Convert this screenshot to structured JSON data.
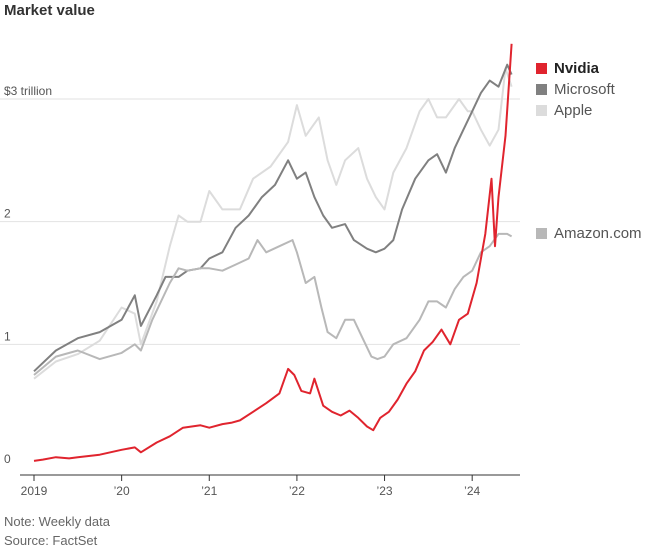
{
  "chart_data": {
    "type": "line",
    "title": "Market value",
    "xlabel": "",
    "ylabel": "",
    "xlim": [
      2019.0,
      2024.5
    ],
    "ylim": [
      0,
      3
    ],
    "y_ticks": [
      {
        "value": 0,
        "label": "0"
      },
      {
        "value": 1,
        "label": "1"
      },
      {
        "value": 2,
        "label": "2"
      },
      {
        "value": 3,
        "label": "$3 trillion"
      }
    ],
    "x_ticks": [
      {
        "value": 2019,
        "label": "2019"
      },
      {
        "value": 2020,
        "label": "’20"
      },
      {
        "value": 2021,
        "label": "’21"
      },
      {
        "value": 2022,
        "label": "’22"
      },
      {
        "value": 2023,
        "label": "’23"
      },
      {
        "value": 2024,
        "label": "’24"
      }
    ],
    "grid": true,
    "legend_position": "right",
    "series": [
      {
        "name": "Apple",
        "color": "#dcdcdc",
        "points": [
          [
            2019.0,
            0.72
          ],
          [
            2019.25,
            0.86
          ],
          [
            2019.5,
            0.92
          ],
          [
            2019.75,
            1.03
          ],
          [
            2020.0,
            1.3
          ],
          [
            2020.15,
            1.25
          ],
          [
            2020.22,
            1.0
          ],
          [
            2020.4,
            1.35
          ],
          [
            2020.55,
            1.8
          ],
          [
            2020.65,
            2.05
          ],
          [
            2020.75,
            2.0
          ],
          [
            2020.9,
            2.0
          ],
          [
            2021.0,
            2.25
          ],
          [
            2021.15,
            2.1
          ],
          [
            2021.35,
            2.1
          ],
          [
            2021.5,
            2.35
          ],
          [
            2021.7,
            2.45
          ],
          [
            2021.9,
            2.65
          ],
          [
            2022.0,
            2.95
          ],
          [
            2022.1,
            2.7
          ],
          [
            2022.25,
            2.85
          ],
          [
            2022.35,
            2.5
          ],
          [
            2022.45,
            2.3
          ],
          [
            2022.55,
            2.5
          ],
          [
            2022.7,
            2.6
          ],
          [
            2022.8,
            2.35
          ],
          [
            2022.9,
            2.2
          ],
          [
            2023.0,
            2.1
          ],
          [
            2023.1,
            2.4
          ],
          [
            2023.25,
            2.6
          ],
          [
            2023.4,
            2.9
          ],
          [
            2023.5,
            3.0
          ],
          [
            2023.6,
            2.85
          ],
          [
            2023.7,
            2.85
          ],
          [
            2023.85,
            3.0
          ],
          [
            2023.95,
            2.9
          ],
          [
            2024.0,
            2.9
          ],
          [
            2024.1,
            2.75
          ],
          [
            2024.2,
            2.62
          ],
          [
            2024.3,
            2.75
          ],
          [
            2024.38,
            3.25
          ],
          [
            2024.45,
            3.1
          ]
        ]
      },
      {
        "name": "Microsoft",
        "color": "#808080",
        "points": [
          [
            2019.0,
            0.78
          ],
          [
            2019.25,
            0.95
          ],
          [
            2019.5,
            1.05
          ],
          [
            2019.75,
            1.1
          ],
          [
            2020.0,
            1.2
          ],
          [
            2020.15,
            1.4
          ],
          [
            2020.22,
            1.15
          ],
          [
            2020.4,
            1.4
          ],
          [
            2020.5,
            1.55
          ],
          [
            2020.65,
            1.55
          ],
          [
            2020.75,
            1.6
          ],
          [
            2020.9,
            1.62
          ],
          [
            2021.0,
            1.7
          ],
          [
            2021.15,
            1.75
          ],
          [
            2021.3,
            1.95
          ],
          [
            2021.45,
            2.05
          ],
          [
            2021.6,
            2.2
          ],
          [
            2021.75,
            2.3
          ],
          [
            2021.9,
            2.5
          ],
          [
            2022.0,
            2.35
          ],
          [
            2022.1,
            2.4
          ],
          [
            2022.2,
            2.2
          ],
          [
            2022.3,
            2.05
          ],
          [
            2022.4,
            1.95
          ],
          [
            2022.55,
            1.98
          ],
          [
            2022.65,
            1.85
          ],
          [
            2022.8,
            1.78
          ],
          [
            2022.9,
            1.75
          ],
          [
            2023.0,
            1.78
          ],
          [
            2023.1,
            1.85
          ],
          [
            2023.2,
            2.1
          ],
          [
            2023.35,
            2.35
          ],
          [
            2023.5,
            2.5
          ],
          [
            2023.6,
            2.55
          ],
          [
            2023.7,
            2.4
          ],
          [
            2023.8,
            2.6
          ],
          [
            2023.9,
            2.75
          ],
          [
            2024.0,
            2.9
          ],
          [
            2024.1,
            3.05
          ],
          [
            2024.2,
            3.15
          ],
          [
            2024.3,
            3.1
          ],
          [
            2024.4,
            3.28
          ],
          [
            2024.45,
            3.2
          ]
        ]
      },
      {
        "name": "Amazon.com",
        "color": "#b8b8b8",
        "points": [
          [
            2019.0,
            0.75
          ],
          [
            2019.25,
            0.9
          ],
          [
            2019.5,
            0.95
          ],
          [
            2019.75,
            0.88
          ],
          [
            2020.0,
            0.93
          ],
          [
            2020.15,
            1.0
          ],
          [
            2020.22,
            0.95
          ],
          [
            2020.35,
            1.2
          ],
          [
            2020.55,
            1.5
          ],
          [
            2020.65,
            1.62
          ],
          [
            2020.75,
            1.6
          ],
          [
            2020.9,
            1.62
          ],
          [
            2021.0,
            1.62
          ],
          [
            2021.15,
            1.6
          ],
          [
            2021.3,
            1.65
          ],
          [
            2021.45,
            1.7
          ],
          [
            2021.55,
            1.85
          ],
          [
            2021.65,
            1.75
          ],
          [
            2021.8,
            1.8
          ],
          [
            2021.95,
            1.85
          ],
          [
            2022.0,
            1.75
          ],
          [
            2022.1,
            1.5
          ],
          [
            2022.2,
            1.55
          ],
          [
            2022.28,
            1.3
          ],
          [
            2022.35,
            1.1
          ],
          [
            2022.45,
            1.05
          ],
          [
            2022.55,
            1.2
          ],
          [
            2022.65,
            1.2
          ],
          [
            2022.75,
            1.05
          ],
          [
            2022.85,
            0.9
          ],
          [
            2022.92,
            0.88
          ],
          [
            2023.0,
            0.9
          ],
          [
            2023.1,
            1.0
          ],
          [
            2023.25,
            1.05
          ],
          [
            2023.4,
            1.2
          ],
          [
            2023.5,
            1.35
          ],
          [
            2023.6,
            1.35
          ],
          [
            2023.7,
            1.3
          ],
          [
            2023.8,
            1.45
          ],
          [
            2023.9,
            1.55
          ],
          [
            2024.0,
            1.6
          ],
          [
            2024.1,
            1.75
          ],
          [
            2024.2,
            1.8
          ],
          [
            2024.3,
            1.9
          ],
          [
            2024.4,
            1.9
          ],
          [
            2024.45,
            1.88
          ]
        ]
      },
      {
        "name": "Nvidia",
        "color": "#e0242e",
        "points": [
          [
            2019.0,
            0.05
          ],
          [
            2019.1,
            0.06
          ],
          [
            2019.25,
            0.08
          ],
          [
            2019.4,
            0.07
          ],
          [
            2019.5,
            0.08
          ],
          [
            2019.75,
            0.1
          ],
          [
            2020.0,
            0.14
          ],
          [
            2020.15,
            0.16
          ],
          [
            2020.22,
            0.12
          ],
          [
            2020.4,
            0.2
          ],
          [
            2020.55,
            0.25
          ],
          [
            2020.7,
            0.32
          ],
          [
            2020.9,
            0.34
          ],
          [
            2021.0,
            0.32
          ],
          [
            2021.15,
            0.35
          ],
          [
            2021.25,
            0.36
          ],
          [
            2021.35,
            0.38
          ],
          [
            2021.5,
            0.45
          ],
          [
            2021.65,
            0.52
          ],
          [
            2021.8,
            0.6
          ],
          [
            2021.9,
            0.8
          ],
          [
            2021.97,
            0.75
          ],
          [
            2022.05,
            0.62
          ],
          [
            2022.15,
            0.6
          ],
          [
            2022.2,
            0.72
          ],
          [
            2022.3,
            0.5
          ],
          [
            2022.4,
            0.45
          ],
          [
            2022.5,
            0.42
          ],
          [
            2022.6,
            0.46
          ],
          [
            2022.7,
            0.4
          ],
          [
            2022.8,
            0.33
          ],
          [
            2022.87,
            0.3
          ],
          [
            2022.95,
            0.4
          ],
          [
            2023.05,
            0.45
          ],
          [
            2023.15,
            0.55
          ],
          [
            2023.25,
            0.68
          ],
          [
            2023.35,
            0.78
          ],
          [
            2023.45,
            0.95
          ],
          [
            2023.55,
            1.02
          ],
          [
            2023.65,
            1.12
          ],
          [
            2023.75,
            1.0
          ],
          [
            2023.85,
            1.2
          ],
          [
            2023.95,
            1.25
          ],
          [
            2024.05,
            1.5
          ],
          [
            2024.15,
            1.9
          ],
          [
            2024.22,
            2.35
          ],
          [
            2024.26,
            1.8
          ],
          [
            2024.3,
            2.2
          ],
          [
            2024.38,
            2.7
          ],
          [
            2024.45,
            3.45
          ]
        ]
      }
    ],
    "source_note": "Note: Weekly data",
    "source": "Source: FactSet"
  }
}
